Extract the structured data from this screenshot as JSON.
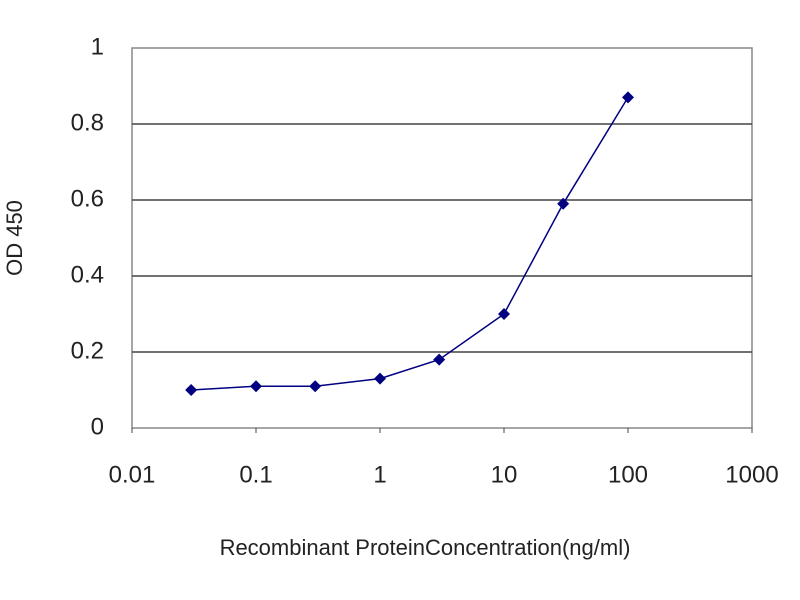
{
  "chart_data": {
    "type": "line",
    "x": [
      0.03,
      0.1,
      0.3,
      1,
      3,
      10,
      30,
      100
    ],
    "values": [
      0.1,
      0.11,
      0.11,
      0.13,
      0.18,
      0.3,
      0.59,
      0.87
    ],
    "color": "#000080",
    "xlabel": "Recombinant ProteinConcentration(ng/ml)",
    "ylabel": "OD 450",
    "xscale": "log",
    "xlim": [
      0.01,
      1000
    ],
    "xticks": [
      0.01,
      0.1,
      1,
      10,
      100,
      1000
    ],
    "ylim": [
      0,
      1
    ],
    "yticks": [
      0,
      0.2,
      0.4,
      0.6,
      0.8,
      1
    ],
    "grid": true
  }
}
